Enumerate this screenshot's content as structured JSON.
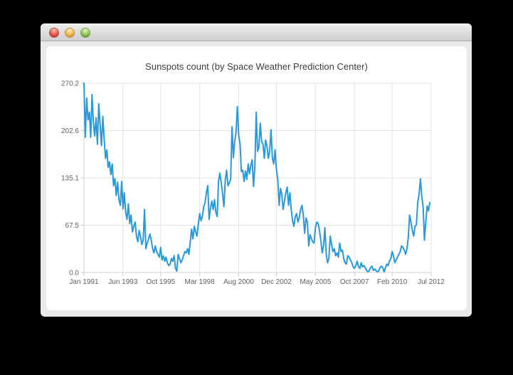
{
  "window": {
    "controls": [
      {
        "name": "close",
        "color": "#d93f33"
      },
      {
        "name": "minimize",
        "color": "#f0a83a"
      },
      {
        "name": "zoom",
        "color": "#7db84a"
      }
    ],
    "titlebar_text": ""
  },
  "chart_data": {
    "type": "line",
    "title": "Sunspots count (by Space Weather Prediction Center)",
    "series_name": "Sunspots count",
    "series_color": "#2a98d9",
    "grid": true,
    "legend": "none",
    "ylim": [
      0,
      270.2
    ],
    "x_span_months": 258,
    "x_start": "Jan 1991",
    "x_end": "Jun 2012",
    "y_ticks": [
      {
        "label": "0.0",
        "value": 0
      },
      {
        "label": "67.5",
        "value": 67.55
      },
      {
        "label": "135.1",
        "value": 135.1
      },
      {
        "label": "202.6",
        "value": 202.65
      },
      {
        "label": "270.2",
        "value": 270.2
      }
    ],
    "x_ticks": [
      {
        "label": "Jan 1991",
        "month": 0
      },
      {
        "label": "Jun 1993",
        "month": 29
      },
      {
        "label": "Oct 1995",
        "month": 57
      },
      {
        "label": "Mar 1998",
        "month": 86
      },
      {
        "label": "Aug 2000",
        "month": 115
      },
      {
        "label": "Dec 2002",
        "month": 143
      },
      {
        "label": "May 2005",
        "month": 172
      },
      {
        "label": "Oct 2007",
        "month": 201
      },
      {
        "label": "Feb 2010",
        "month": 229
      },
      {
        "label": "Jul 2012",
        "month": 258
      }
    ],
    "values": [
      270.2,
      193,
      249,
      218,
      229,
      193,
      254,
      215,
      195,
      221,
      183,
      241,
      211,
      181,
      223,
      190,
      163,
      175,
      150,
      158,
      140,
      155,
      124,
      134,
      110,
      129,
      104,
      96,
      130,
      91,
      114,
      86,
      76,
      98,
      70,
      82,
      58,
      66,
      72,
      52,
      44,
      60,
      52,
      40,
      46,
      90,
      34,
      42,
      48,
      55,
      46,
      34,
      28,
      38,
      30,
      26,
      22,
      36,
      18,
      24,
      16,
      22,
      14,
      10,
      12,
      20,
      16,
      24,
      6,
      2,
      26,
      20,
      14,
      18,
      24,
      30,
      28,
      34,
      26,
      44,
      62,
      48,
      66,
      58,
      52,
      70,
      84,
      74,
      80,
      94,
      100,
      114,
      124,
      76,
      92,
      102,
      90,
      104,
      86,
      80,
      130,
      142,
      128,
      113,
      94,
      132,
      146,
      124,
      128,
      133,
      208,
      164,
      186,
      200,
      237,
      196,
      183,
      144,
      146,
      130,
      145,
      133,
      155,
      141,
      153,
      161,
      123,
      151,
      229,
      173,
      179,
      213,
      187,
      183,
      163,
      189,
      181,
      163,
      173,
      204,
      163,
      155,
      175,
      147,
      133,
      96,
      120,
      112,
      90,
      102,
      114,
      122,
      96,
      114,
      90,
      74,
      66,
      80,
      84,
      72,
      78,
      90,
      96,
      82,
      56,
      78,
      72,
      38,
      54,
      48,
      44,
      42,
      64,
      72,
      70,
      60,
      46,
      28,
      38,
      64,
      26,
      14,
      20,
      52,
      40,
      30,
      34,
      24,
      28,
      22,
      42,
      30,
      32,
      20,
      14,
      12,
      24,
      22,
      18,
      14,
      8,
      6,
      10,
      16,
      8,
      6,
      14,
      8,
      10,
      7,
      3,
      1,
      3,
      7,
      9,
      3,
      5,
      3,
      1,
      2,
      7,
      9,
      7,
      1,
      7,
      12,
      10,
      16,
      20,
      30,
      24,
      14,
      18,
      22,
      26,
      30,
      38,
      36,
      32,
      26,
      34,
      50,
      82,
      72,
      60,
      52,
      66,
      68,
      100,
      112,
      134,
      108,
      94,
      46,
      72,
      95,
      88,
      100
    ]
  }
}
